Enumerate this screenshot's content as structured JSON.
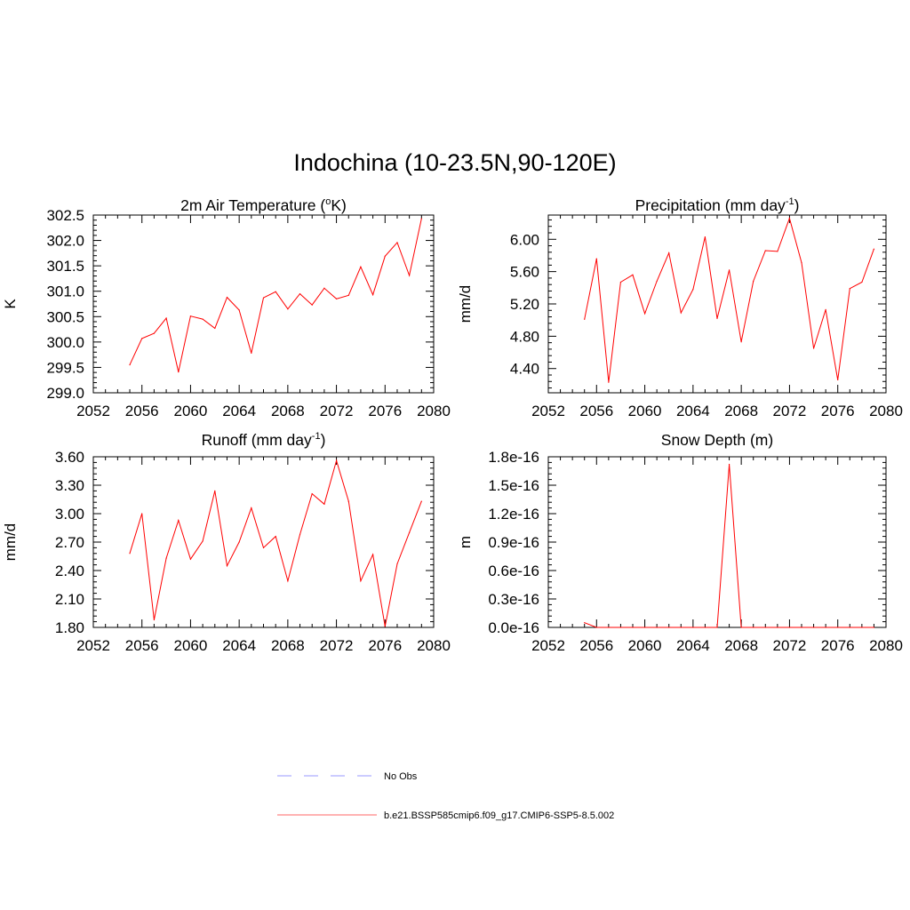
{
  "figure": {
    "title": "Indochina (10-23.5N,90-120E)"
  },
  "chart_data": [
    {
      "type": "line",
      "title": "2m Air Temperature (",
      "title_sup": "o",
      "title_suffix": "K)",
      "ylabel": "K",
      "xlim": [
        2052,
        2080
      ],
      "ylim": [
        299.0,
        302.5
      ],
      "x_ticks": [
        2052,
        2056,
        2060,
        2064,
        2068,
        2072,
        2076,
        2080
      ],
      "x_tick_labels": [
        "2052",
        "2056",
        "2060",
        "2064",
        "2068",
        "2072",
        "2076",
        "2080"
      ],
      "y_ticks": [
        299.0,
        299.5,
        300.0,
        300.5,
        301.0,
        301.5,
        302.0,
        302.5
      ],
      "y_tick_labels": [
        "299.0",
        "299.5",
        "300.0",
        "300.5",
        "301.0",
        "301.5",
        "302.0",
        "302.5"
      ],
      "series": [
        {
          "color": "#ff0000",
          "x": [
            2055,
            2056,
            2057,
            2058,
            2059,
            2060,
            2061,
            2062,
            2063,
            2064,
            2065,
            2066,
            2067,
            2068,
            2069,
            2070,
            2071,
            2072,
            2073,
            2074,
            2075,
            2076,
            2077,
            2078,
            2079
          ],
          "y": [
            299.55,
            300.07,
            300.17,
            300.47,
            299.41,
            300.51,
            300.45,
            300.27,
            300.88,
            300.63,
            299.78,
            300.87,
            300.99,
            300.65,
            300.95,
            300.73,
            301.06,
            300.85,
            300.92,
            301.48,
            300.93,
            301.69,
            301.96,
            301.31,
            302.43
          ]
        }
      ]
    },
    {
      "type": "line",
      "title": "Precipitation (mm day",
      "title_sup": "-1",
      "title_suffix": ")",
      "ylabel": "mm/d",
      "xlim": [
        2052,
        2080
      ],
      "ylim": [
        4.1,
        6.3
      ],
      "x_ticks": [
        2052,
        2056,
        2060,
        2064,
        2068,
        2072,
        2076,
        2080
      ],
      "x_tick_labels": [
        "2052",
        "2056",
        "2060",
        "2064",
        "2068",
        "2072",
        "2076",
        "2080"
      ],
      "y_ticks": [
        4.4,
        4.8,
        5.2,
        5.6,
        6.0
      ],
      "y_tick_labels": [
        "4.40",
        "4.80",
        "5.20",
        "5.60",
        "6.00"
      ],
      "series": [
        {
          "color": "#ff0000",
          "x": [
            2055,
            2056,
            2057,
            2058,
            2059,
            2060,
            2061,
            2062,
            2063,
            2064,
            2065,
            2066,
            2067,
            2068,
            2069,
            2070,
            2071,
            2072,
            2073,
            2074,
            2075,
            2076,
            2077,
            2078,
            2079
          ],
          "y": [
            5.01,
            5.76,
            4.23,
            5.47,
            5.56,
            5.08,
            5.48,
            5.83,
            5.09,
            5.38,
            6.03,
            5.02,
            5.62,
            4.73,
            5.48,
            5.86,
            5.85,
            6.26,
            5.71,
            4.65,
            5.13,
            4.26,
            5.39,
            5.47,
            5.88
          ]
        }
      ]
    },
    {
      "type": "line",
      "title": "Runoff (mm day",
      "title_sup": "-1",
      "title_suffix": ")",
      "ylabel": "mm/d",
      "xlim": [
        2052,
        2080
      ],
      "ylim": [
        1.8,
        3.6
      ],
      "x_ticks": [
        2052,
        2056,
        2060,
        2064,
        2068,
        2072,
        2076,
        2080
      ],
      "x_tick_labels": [
        "2052",
        "2056",
        "2060",
        "2064",
        "2068",
        "2072",
        "2076",
        "2080"
      ],
      "y_ticks": [
        1.8,
        2.1,
        2.4,
        2.7,
        3.0,
        3.3,
        3.6
      ],
      "y_tick_labels": [
        "1.80",
        "2.10",
        "2.40",
        "2.70",
        "3.00",
        "3.30",
        "3.60"
      ],
      "series": [
        {
          "color": "#ff0000",
          "x": [
            2055,
            2056,
            2057,
            2058,
            2059,
            2060,
            2061,
            2062,
            2063,
            2064,
            2065,
            2066,
            2067,
            2068,
            2069,
            2070,
            2071,
            2072,
            2073,
            2074,
            2075,
            2076,
            2077,
            2078,
            2079
          ],
          "y": [
            2.58,
            3.0,
            1.88,
            2.53,
            2.93,
            2.52,
            2.71,
            3.24,
            2.45,
            2.7,
            3.06,
            2.64,
            2.76,
            2.29,
            2.78,
            3.21,
            3.1,
            3.56,
            3.13,
            2.29,
            2.57,
            1.81,
            2.47,
            2.8,
            3.13
          ]
        }
      ]
    },
    {
      "type": "line",
      "title": "Snow Depth (m)",
      "title_sup": "",
      "title_suffix": "",
      "ylabel": "m",
      "xlim": [
        2052,
        2080
      ],
      "ylim": [
        0,
        1.8e-16
      ],
      "x_ticks": [
        2052,
        2056,
        2060,
        2064,
        2068,
        2072,
        2076,
        2080
      ],
      "x_tick_labels": [
        "2052",
        "2056",
        "2060",
        "2064",
        "2068",
        "2072",
        "2076",
        "2080"
      ],
      "y_ticks": [
        0,
        3e-17,
        6e-17,
        9e-17,
        1.2e-16,
        1.5e-16,
        1.8e-16
      ],
      "y_tick_labels": [
        "0.0e-16",
        "0.3e-16",
        "0.6e-16",
        "0.9e-16",
        "1.2e-16",
        "1.5e-16",
        "1.8e-16"
      ],
      "series": [
        {
          "color": "#ff0000",
          "x": [
            2055,
            2056,
            2057,
            2058,
            2059,
            2060,
            2061,
            2062,
            2063,
            2064,
            2065,
            2066,
            2067,
            2068,
            2069,
            2070,
            2071,
            2072,
            2073,
            2074,
            2075,
            2076,
            2077,
            2078,
            2079
          ],
          "y": [
            5e-18,
            0.0,
            0.0,
            0.0,
            0.0,
            0.0,
            0.0,
            0.0,
            0.0,
            0.0,
            0.0,
            0.0,
            1.72e-16,
            0.0,
            0.0,
            0.0,
            0.0,
            0.0,
            0.0,
            0.0,
            0.0,
            0.0,
            0.0,
            0.0,
            0.0
          ]
        }
      ]
    }
  ],
  "legend": [
    {
      "label": "No Obs",
      "color": "#9999ff",
      "style": "dashed"
    },
    {
      "label": "b.e21.BSSP585cmip6.f09_g17.CMIP6-SSP5-8.5.002",
      "color": "#ff6666",
      "style": "solid"
    }
  ]
}
